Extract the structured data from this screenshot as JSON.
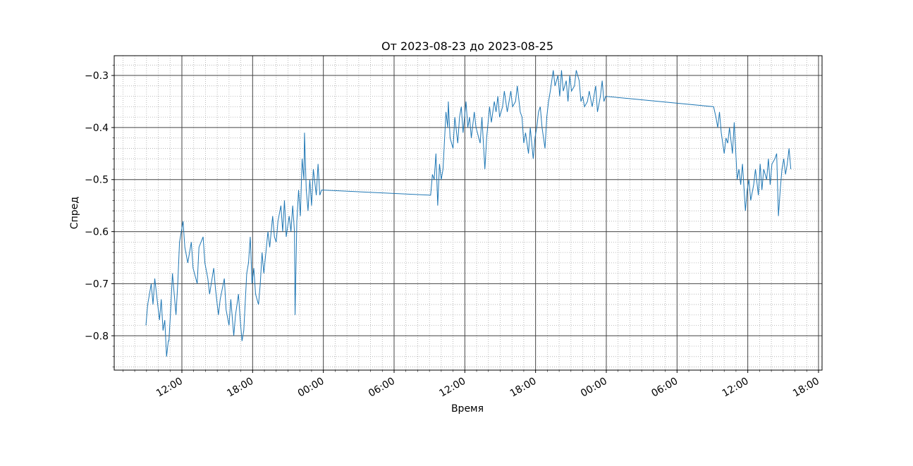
{
  "chart_data": {
    "type": "line",
    "title": "От 2023-08-23 до 2023-08-25",
    "x_label": "Время",
    "y_label": "Спред",
    "xlim": [
      6.26,
      66.3
    ],
    "ylim": [
      -0.866,
      -0.262
    ],
    "xticks": [
      {
        "value": 12,
        "label": "12:00"
      },
      {
        "value": 18,
        "label": "18:00"
      },
      {
        "value": 24,
        "label": "00:00"
      },
      {
        "value": 30,
        "label": "06:00"
      },
      {
        "value": 36,
        "label": "12:00"
      },
      {
        "value": 42,
        "label": "18:00"
      },
      {
        "value": 48,
        "label": "00:00"
      },
      {
        "value": 54,
        "label": "06:00"
      },
      {
        "value": 60,
        "label": "12:00"
      },
      {
        "value": 66,
        "label": "18:00"
      }
    ],
    "yticks": [
      {
        "value": -0.8,
        "label": "−0.8"
      },
      {
        "value": -0.7,
        "label": "−0.7"
      },
      {
        "value": -0.6,
        "label": "−0.6"
      },
      {
        "value": -0.5,
        "label": "−0.5"
      },
      {
        "value": -0.4,
        "label": "−0.4"
      },
      {
        "value": -0.3,
        "label": "−0.3"
      }
    ],
    "xminorticks": [
      7,
      8,
      9,
      10,
      11,
      13,
      14,
      15,
      16,
      17,
      19,
      20,
      21,
      22,
      23,
      25,
      26,
      27,
      28,
      29,
      31,
      32,
      33,
      34,
      35,
      37,
      38,
      39,
      40,
      41,
      43,
      44,
      45,
      46,
      47,
      49,
      50,
      51,
      52,
      53,
      55,
      56,
      57,
      58,
      59,
      61,
      62,
      63,
      64,
      65
    ],
    "yminorticks": [
      -0.86,
      -0.84,
      -0.82,
      -0.78,
      -0.76,
      -0.74,
      -0.72,
      -0.68,
      -0.66,
      -0.64,
      -0.62,
      -0.58,
      -0.56,
      -0.54,
      -0.52,
      -0.48,
      -0.46,
      -0.44,
      -0.42,
      -0.38,
      -0.36,
      -0.34,
      -0.32,
      -0.28
    ],
    "grid": true,
    "minor_grid": true,
    "series": [
      {
        "color": "#1f77b4",
        "x": [
          8.95,
          9.1,
          9.4,
          9.55,
          9.7,
          9.85,
          10.1,
          10.25,
          10.4,
          10.55,
          10.7,
          10.85,
          10.9,
          11.05,
          11.2,
          11.35,
          11.5,
          11.65,
          11.8,
          11.95,
          12.1,
          12.25,
          12.5,
          12.65,
          12.8,
          12.95,
          13.3,
          13.45,
          13.8,
          13.95,
          14.2,
          14.35,
          14.7,
          14.85,
          15.1,
          15.25,
          15.6,
          15.75,
          16.0,
          16.15,
          16.4,
          16.55,
          16.8,
          16.95,
          17.1,
          17.25,
          17.5,
          17.65,
          17.8,
          17.95,
          18.1,
          18.25,
          18.5,
          18.65,
          18.8,
          18.95,
          19.3,
          19.45,
          19.7,
          19.85,
          20.0,
          20.15,
          20.4,
          20.55,
          20.7,
          20.85,
          21.1,
          21.25,
          21.4,
          21.55,
          21.6,
          21.75,
          21.9,
          22.05,
          22.2,
          22.35,
          22.4,
          22.55,
          22.7,
          22.85,
          23.0,
          23.15,
          23.4,
          23.55,
          23.7,
          23.85,
          33.1,
          33.25,
          33.4,
          33.55,
          33.7,
          33.85,
          34.0,
          34.15,
          34.4,
          34.55,
          34.6,
          34.75,
          35.0,
          35.15,
          35.4,
          35.55,
          35.7,
          35.85,
          36.1,
          36.25,
          36.4,
          36.55,
          36.8,
          36.95,
          37.3,
          37.45,
          37.7,
          37.85,
          38.1,
          38.25,
          38.5,
          38.65,
          38.8,
          38.95,
          39.2,
          39.35,
          39.6,
          39.75,
          39.9,
          40.05,
          40.3,
          40.45,
          40.7,
          40.85,
          41.0,
          41.15,
          41.4,
          41.55,
          41.8,
          41.95,
          42.1,
          42.25,
          42.4,
          42.55,
          42.8,
          42.95,
          43.1,
          43.25,
          43.5,
          43.65,
          43.9,
          44.05,
          44.2,
          44.35,
          44.6,
          44.75,
          44.9,
          45.05,
          45.3,
          45.45,
          45.7,
          45.85,
          46.0,
          46.15,
          46.4,
          46.55,
          46.8,
          46.95,
          47.1,
          47.25,
          47.5,
          47.65,
          47.8,
          47.95,
          57.1,
          57.3,
          57.45,
          57.6,
          57.75,
          58.0,
          58.15,
          58.3,
          58.45,
          58.7,
          58.85,
          59.1,
          59.25,
          59.4,
          59.55,
          59.8,
          59.95,
          60.1,
          60.25,
          60.5,
          60.65,
          60.9,
          61.05,
          61.2,
          61.35,
          61.6,
          61.75,
          61.9,
          62.05,
          62.3,
          62.45,
          62.6,
          62.75,
          62.9,
          63.05,
          63.2,
          63.35,
          63.5,
          63.65
        ],
        "values": [
          -0.78,
          -0.74,
          -0.7,
          -0.74,
          -0.69,
          -0.72,
          -0.77,
          -0.73,
          -0.79,
          -0.77,
          -0.84,
          -0.81,
          -0.81,
          -0.75,
          -0.68,
          -0.72,
          -0.76,
          -0.7,
          -0.62,
          -0.6,
          -0.58,
          -0.63,
          -0.66,
          -0.64,
          -0.62,
          -0.67,
          -0.7,
          -0.63,
          -0.61,
          -0.66,
          -0.69,
          -0.72,
          -0.67,
          -0.71,
          -0.76,
          -0.73,
          -0.69,
          -0.75,
          -0.78,
          -0.73,
          -0.8,
          -0.76,
          -0.72,
          -0.77,
          -0.81,
          -0.79,
          -0.68,
          -0.66,
          -0.61,
          -0.7,
          -0.67,
          -0.72,
          -0.74,
          -0.7,
          -0.64,
          -0.68,
          -0.6,
          -0.63,
          -0.57,
          -0.61,
          -0.62,
          -0.58,
          -0.55,
          -0.6,
          -0.54,
          -0.61,
          -0.57,
          -0.6,
          -0.55,
          -0.6,
          -0.76,
          -0.58,
          -0.52,
          -0.57,
          -0.46,
          -0.5,
          -0.41,
          -0.52,
          -0.56,
          -0.5,
          -0.55,
          -0.48,
          -0.53,
          -0.47,
          -0.53,
          -0.52,
          -0.53,
          -0.49,
          -0.5,
          -0.45,
          -0.55,
          -0.47,
          -0.5,
          -0.48,
          -0.37,
          -0.4,
          -0.35,
          -0.42,
          -0.44,
          -0.38,
          -0.43,
          -0.38,
          -0.36,
          -0.41,
          -0.35,
          -0.4,
          -0.38,
          -0.42,
          -0.37,
          -0.4,
          -0.43,
          -0.38,
          -0.48,
          -0.42,
          -0.36,
          -0.39,
          -0.35,
          -0.37,
          -0.34,
          -0.38,
          -0.36,
          -0.33,
          -0.37,
          -0.35,
          -0.33,
          -0.36,
          -0.35,
          -0.32,
          -0.37,
          -0.38,
          -0.43,
          -0.41,
          -0.45,
          -0.4,
          -0.46,
          -0.42,
          -0.4,
          -0.37,
          -0.36,
          -0.4,
          -0.44,
          -0.38,
          -0.35,
          -0.33,
          -0.29,
          -0.32,
          -0.3,
          -0.34,
          -0.29,
          -0.33,
          -0.31,
          -0.35,
          -0.3,
          -0.33,
          -0.32,
          -0.29,
          -0.31,
          -0.35,
          -0.34,
          -0.36,
          -0.35,
          -0.33,
          -0.36,
          -0.34,
          -0.32,
          -0.37,
          -0.34,
          -0.31,
          -0.35,
          -0.34,
          -0.36,
          -0.38,
          -0.4,
          -0.37,
          -0.41,
          -0.45,
          -0.42,
          -0.43,
          -0.4,
          -0.45,
          -0.39,
          -0.5,
          -0.48,
          -0.51,
          -0.47,
          -0.56,
          -0.52,
          -0.5,
          -0.54,
          -0.51,
          -0.48,
          -0.53,
          -0.47,
          -0.52,
          -0.48,
          -0.5,
          -0.46,
          -0.51,
          -0.47,
          -0.46,
          -0.45,
          -0.57,
          -0.52,
          -0.48,
          -0.46,
          -0.49,
          -0.47,
          -0.44,
          -0.48
        ]
      }
    ]
  }
}
